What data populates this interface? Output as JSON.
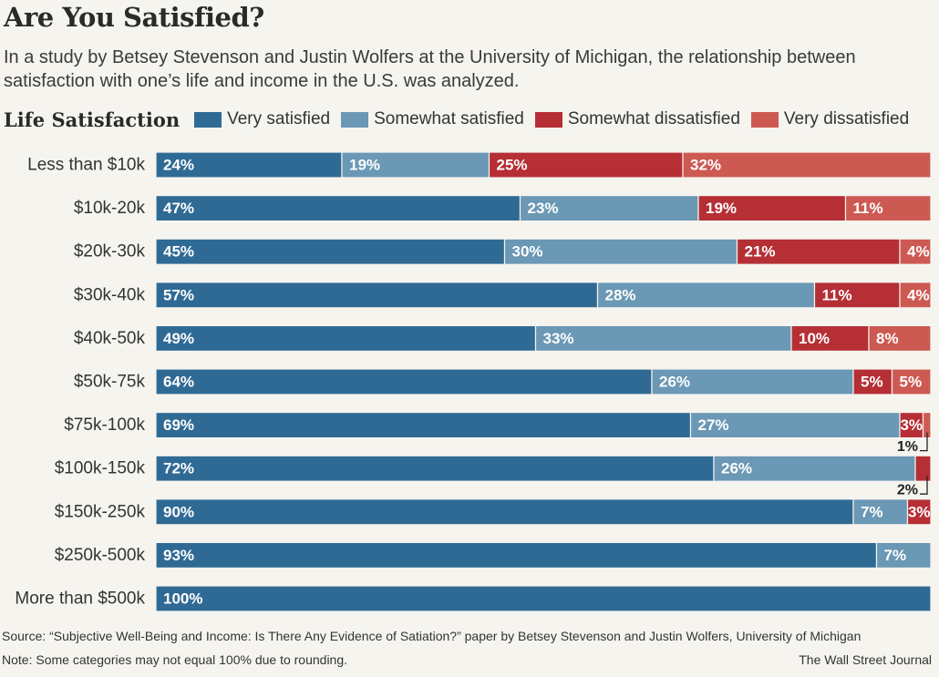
{
  "header": {
    "title": "Are You Satisfied?",
    "subtitle": "In a study by Betsey Stevenson and Justin Wolfers at the University of Michigan, the relationship between satisfaction with one’s life and income in the U.S. was analyzed."
  },
  "footer": {
    "source": "Source: “Subjective Well-Being and Income: Is There Any Evidence of Satiation?” paper by Betsey Stevenson and Justin Wolfers, University of Michigan",
    "note": "Note: Some categories may not equal 100% due to rounding.",
    "credit": "The Wall Street Journal"
  },
  "chart_data": {
    "type": "bar",
    "orientation": "horizontal",
    "stacked": true,
    "title": "Life Satisfaction",
    "value_format": "percent",
    "legend_placement": "top",
    "grid": false,
    "xlim": [
      0,
      100
    ],
    "categories": [
      "Less than $10k",
      "$10k-20k",
      "$20k-30k",
      "$30k-40k",
      "$40k-50k",
      "$50k-75k",
      "$75k-100k",
      "$100k-150k",
      "$150k-250k",
      "$250k-500k",
      "More than $500k"
    ],
    "series": [
      {
        "name": "Very satisfied",
        "color": "#2f6a94",
        "values": [
          24,
          47,
          45,
          57,
          49,
          64,
          69,
          72,
          90,
          93,
          100
        ]
      },
      {
        "name": "Somewhat satisfied",
        "color": "#6a98b5",
        "values": [
          19,
          23,
          30,
          28,
          33,
          26,
          27,
          26,
          7,
          7,
          0
        ]
      },
      {
        "name": "Somewhat dissatisfied",
        "color": "#b52f35",
        "values": [
          25,
          19,
          21,
          11,
          10,
          5,
          3,
          2,
          3,
          0,
          0
        ]
      },
      {
        "name": "Very dissatisfied",
        "color": "#cd5a52",
        "values": [
          32,
          11,
          4,
          4,
          8,
          5,
          1,
          0,
          0,
          0,
          0
        ]
      }
    ],
    "callouts": [
      {
        "category": "$75k-100k",
        "series": "Very dissatisfied",
        "text": "1%"
      },
      {
        "category": "$100k-150k",
        "series": "Somewhat dissatisfied",
        "text": "2%"
      }
    ]
  }
}
